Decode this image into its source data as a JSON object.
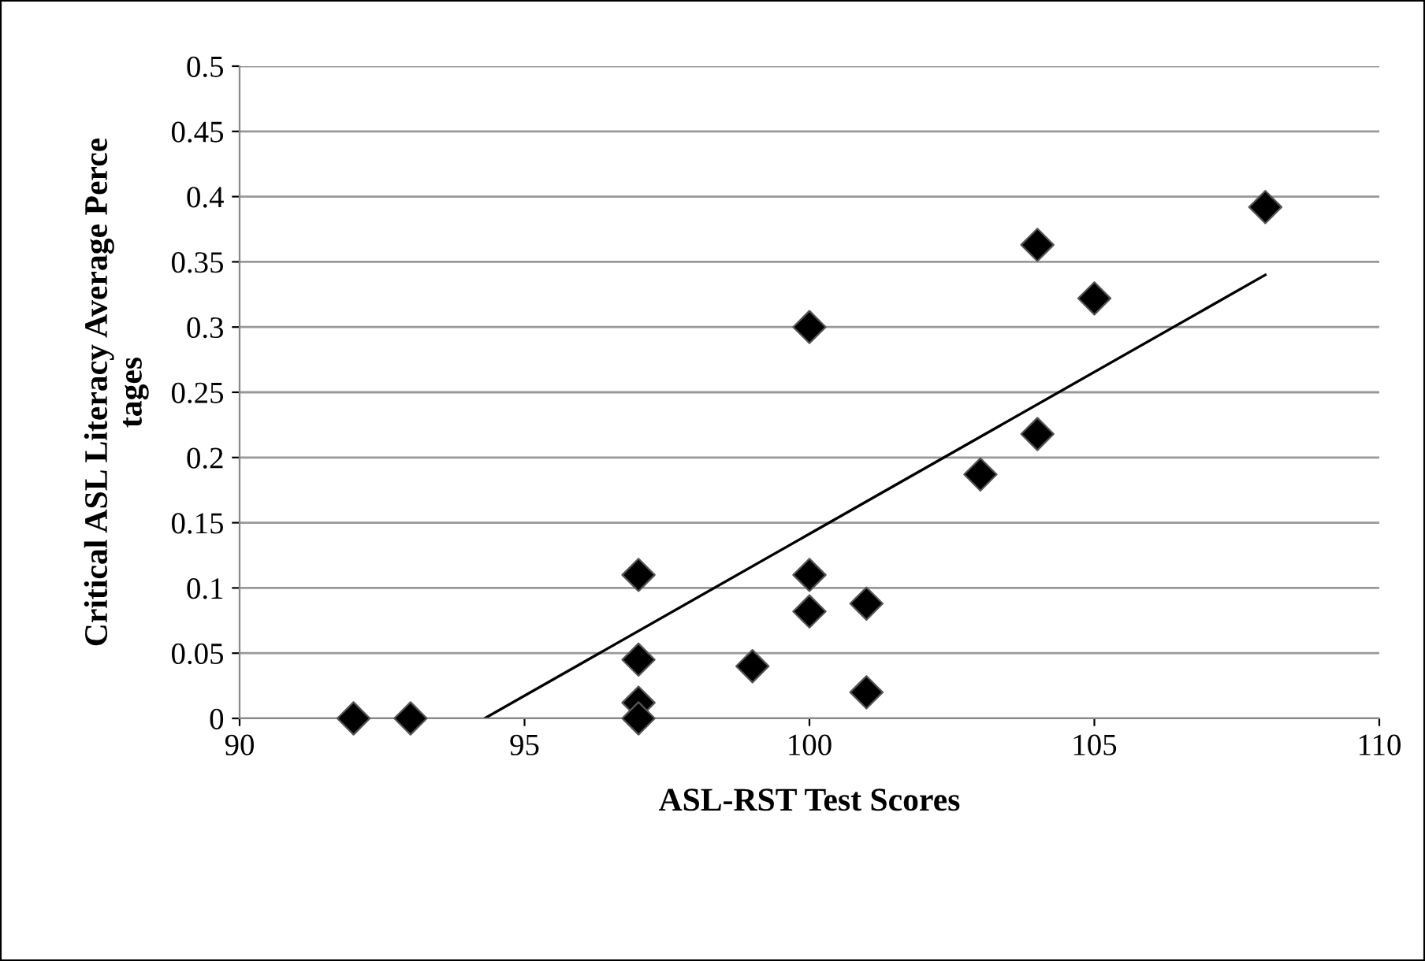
{
  "chart_data": {
    "type": "scatter",
    "xlabel": "ASL-RST Test Scores",
    "ylabel": "Critical ASL Literacy Average Perce\ntages",
    "xlim": [
      90,
      110
    ],
    "xticks": [
      90,
      95,
      100,
      105,
      110
    ],
    "ylim": [
      0,
      0.5
    ],
    "yticks": [
      0,
      0.05,
      0.1,
      0.15,
      0.2,
      0.25,
      0.3,
      0.35,
      0.4,
      0.45,
      0.5
    ],
    "grid": "y",
    "series": [
      {
        "marker": "diamond",
        "color": "#000000",
        "x": [
          92,
          93,
          97,
          97,
          97,
          97,
          99,
          100,
          100,
          100,
          101,
          101,
          103,
          104,
          104,
          105,
          108
        ],
        "values": [
          0,
          0,
          0.11,
          0.045,
          0.012,
          0,
          0.04,
          0.3,
          0.11,
          0.082,
          0.088,
          0.02,
          0.187,
          0.363,
          0.218,
          0.322,
          0.392
        ]
      },
      {
        "type": "line",
        "color": "#000000",
        "line_style": "solid",
        "x": [
          94.3,
          108
        ],
        "values": [
          0,
          0.34
        ]
      }
    ]
  }
}
